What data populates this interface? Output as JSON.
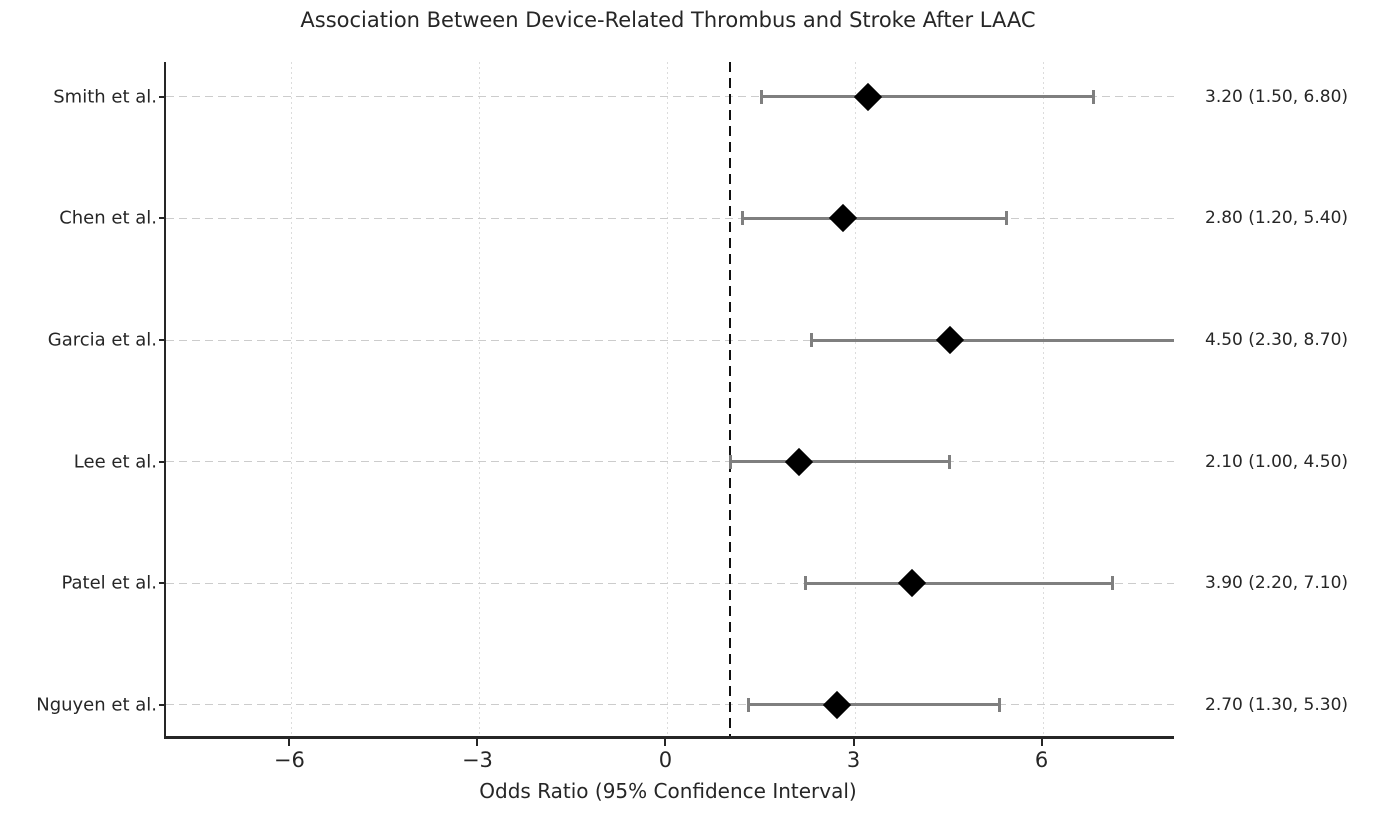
{
  "title": "Association Between Device-Related Thrombus and Stroke After LAAC",
  "xlabel": "Odds Ratio (95% Confidence Interval)",
  "chart_data": {
    "type": "scatter",
    "subtype": "forest-plot",
    "title": "Association Between Device-Related Thrombus and Stroke After LAAC",
    "xlabel": "Odds Ratio (95% Confidence Interval)",
    "xlim": [
      -8.0,
      8.08
    ],
    "x_ticks": [
      {
        "value": -6,
        "label": "−6"
      },
      {
        "value": -3,
        "label": "−3"
      },
      {
        "value": 0,
        "label": "0"
      },
      {
        "value": 3,
        "label": "3"
      },
      {
        "value": 6,
        "label": "6"
      }
    ],
    "reference_line_x": 1,
    "grid": "on",
    "marker_shape": "diamond",
    "studies": [
      {
        "label": "Smith et al.",
        "or": 3.2,
        "ci_low": 1.5,
        "ci_high": 6.8,
        "annotation": "3.20 (1.50, 6.80)"
      },
      {
        "label": "Chen et al.",
        "or": 2.8,
        "ci_low": 1.2,
        "ci_high": 5.4,
        "annotation": "2.80 (1.20, 5.40)"
      },
      {
        "label": "Garcia et al.",
        "or": 4.5,
        "ci_low": 2.3,
        "ci_high": 8.7,
        "annotation": "4.50 (2.30, 8.70)"
      },
      {
        "label": "Lee et al.",
        "or": 2.1,
        "ci_low": 1.0,
        "ci_high": 4.5,
        "annotation": "2.10 (1.00, 4.50)"
      },
      {
        "label": "Patel et al.",
        "or": 3.9,
        "ci_low": 2.2,
        "ci_high": 7.1,
        "annotation": "3.90 (2.20, 7.10)"
      },
      {
        "label": "Nguyen et al.",
        "or": 2.7,
        "ci_low": 1.3,
        "ci_high": 5.3,
        "annotation": "2.70 (1.30, 5.30)"
      }
    ],
    "colors": {
      "marker": "#000000",
      "ci_line": "#7f7f7f",
      "grid_h": "#cccccc",
      "grid_v": "#dcdcdc",
      "reference_line": "#111111",
      "text": "#262626",
      "background": "#ffffff"
    }
  }
}
